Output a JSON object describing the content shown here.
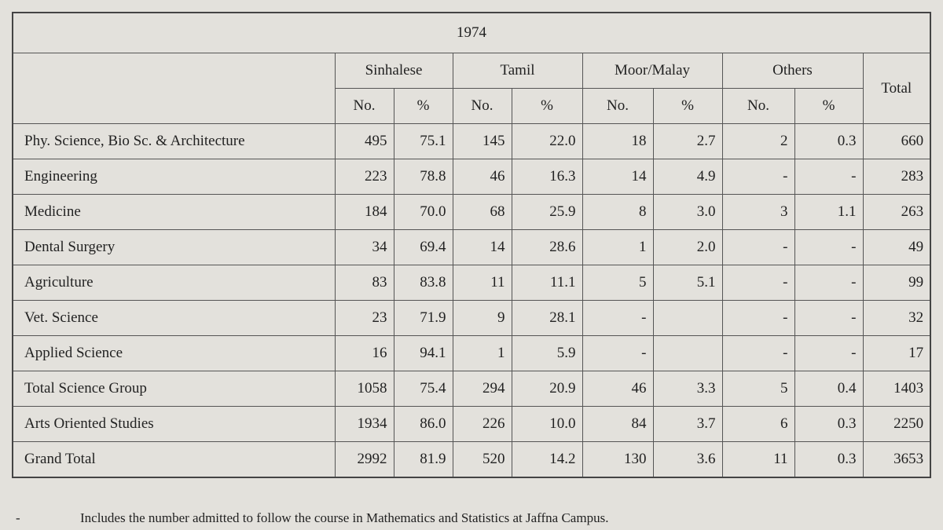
{
  "table": {
    "title": "1974",
    "groups": [
      "Sinhalese",
      "Tamil",
      "Moor/Malay",
      "Others"
    ],
    "total_header": "Total",
    "sub_headers": [
      "No.",
      "%",
      "No.",
      "%",
      "No.",
      "%",
      "No.",
      "%"
    ],
    "rows": [
      {
        "label": "Phy. Science, Bio Sc. & Architecture",
        "cells": [
          "495",
          "75.1",
          "145",
          "22.0",
          "18",
          "2.7",
          "2",
          "0.3",
          "660"
        ]
      },
      {
        "label": "Engineering",
        "cells": [
          "223",
          "78.8",
          "46",
          "16.3",
          "14",
          "4.9",
          "-",
          "-",
          "283"
        ]
      },
      {
        "label": "Medicine",
        "cells": [
          "184",
          "70.0",
          "68",
          "25.9",
          "8",
          "3.0",
          "3",
          "1.1",
          "263"
        ]
      },
      {
        "label": "Dental Surgery",
        "cells": [
          "34",
          "69.4",
          "14",
          "28.6",
          "1",
          "2.0",
          "-",
          "-",
          "49"
        ]
      },
      {
        "label": "Agriculture",
        "cells": [
          "83",
          "83.8",
          "11",
          "11.1",
          "5",
          "5.1",
          "-",
          "-",
          "99"
        ]
      },
      {
        "label": "Vet. Science",
        "cells": [
          "23",
          "71.9",
          "9",
          "28.1",
          "-",
          null,
          "-",
          "-",
          "32"
        ]
      },
      {
        "label": "Applied Science",
        "cells": [
          "16",
          "94.1",
          "1",
          "5.9",
          "-",
          null,
          "-",
          "-",
          "17"
        ]
      },
      {
        "label": "Total Science Group",
        "cells": [
          "1058",
          "75.4",
          "294",
          "20.9",
          "46",
          "3.3",
          "5",
          "0.4",
          "1403"
        ]
      },
      {
        "label": "Arts Oriented Studies",
        "cells": [
          "1934",
          "86.0",
          "226",
          "10.0",
          "84",
          "3.7",
          "6",
          "0.3",
          "2250"
        ]
      },
      {
        "label": "Grand Total",
        "cells": [
          "2992",
          "81.9",
          "520",
          "14.2",
          "130",
          "3.6",
          "11",
          "0.3",
          "3653"
        ]
      }
    ]
  },
  "footnote": {
    "marker": "-",
    "text": "Includes the number admitted to follow the course in Mathematics and Statistics at Jaffna Campus."
  }
}
